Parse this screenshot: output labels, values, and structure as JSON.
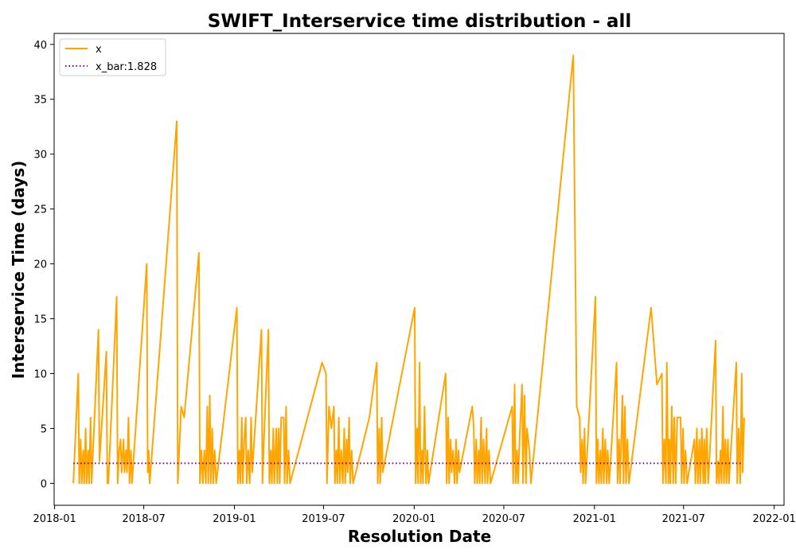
{
  "chart_data": {
    "type": "line",
    "title": "SWIFT_Interservice time distribution - all",
    "xlabel": "Resolution Date",
    "ylabel": "Interservice Time (days)",
    "xlim": [
      "2017-12-31",
      "2022-01-21"
    ],
    "ylim": [
      -2,
      41
    ],
    "x_ticks": [
      "2018-01",
      "2018-07",
      "2019-01",
      "2019-07",
      "2020-01",
      "2020-07",
      "2021-01",
      "2021-07",
      "2022-01"
    ],
    "y_ticks": [
      0,
      5,
      10,
      15,
      20,
      25,
      30,
      35,
      40
    ],
    "grid": false,
    "legend": {
      "placement": "top-left",
      "entries": [
        "x",
        "x_bar:1.828"
      ]
    },
    "colors": {
      "x": "#FFA500",
      "x_bar": "#800080",
      "frame": "#000000"
    },
    "series": [
      {
        "name": "x",
        "style": "solid",
        "points": [
          [
            "2018-02-08",
            0
          ],
          [
            "2018-02-11",
            3
          ],
          [
            "2018-02-18",
            10
          ],
          [
            "2018-02-20",
            0
          ],
          [
            "2018-02-23",
            4
          ],
          [
            "2018-02-25",
            0
          ],
          [
            "2018-02-28",
            3
          ],
          [
            "2018-03-02",
            0
          ],
          [
            "2018-03-05",
            5
          ],
          [
            "2018-03-07",
            0
          ],
          [
            "2018-03-10",
            3
          ],
          [
            "2018-03-12",
            0
          ],
          [
            "2018-03-15",
            6
          ],
          [
            "2018-03-17",
            0
          ],
          [
            "2018-03-31",
            14
          ],
          [
            "2018-04-02",
            2
          ],
          [
            "2018-04-16",
            12
          ],
          [
            "2018-04-18",
            0
          ],
          [
            "2018-04-20",
            0
          ],
          [
            "2018-05-07",
            17
          ],
          [
            "2018-05-09",
            0
          ],
          [
            "2018-05-12",
            3
          ],
          [
            "2018-05-15",
            4
          ],
          [
            "2018-05-17",
            1
          ],
          [
            "2018-05-21",
            4
          ],
          [
            "2018-05-23",
            1
          ],
          [
            "2018-05-26",
            3
          ],
          [
            "2018-05-28",
            1
          ],
          [
            "2018-05-31",
            6
          ],
          [
            "2018-06-02",
            0
          ],
          [
            "2018-06-05",
            3
          ],
          [
            "2018-06-07",
            0
          ],
          [
            "2018-07-07",
            20
          ],
          [
            "2018-07-09",
            1
          ],
          [
            "2018-07-11",
            3
          ],
          [
            "2018-07-13",
            0
          ],
          [
            "2018-09-06",
            33
          ],
          [
            "2018-09-08",
            0
          ],
          [
            "2018-09-15",
            7
          ],
          [
            "2018-09-21",
            6
          ],
          [
            "2018-10-21",
            21
          ],
          [
            "2018-10-23",
            0
          ],
          [
            "2018-10-26",
            3
          ],
          [
            "2018-10-29",
            0
          ],
          [
            "2018-11-01",
            3
          ],
          [
            "2018-11-04",
            0
          ],
          [
            "2018-11-07",
            7
          ],
          [
            "2018-11-09",
            0
          ],
          [
            "2018-11-12",
            8
          ],
          [
            "2018-11-14",
            0
          ],
          [
            "2018-11-17",
            5
          ],
          [
            "2018-11-19",
            0
          ],
          [
            "2018-11-22",
            3
          ],
          [
            "2018-11-25",
            0
          ],
          [
            "2019-01-06",
            16
          ],
          [
            "2019-01-08",
            0
          ],
          [
            "2019-01-11",
            3
          ],
          [
            "2019-01-13",
            0
          ],
          [
            "2019-01-16",
            6
          ],
          [
            "2019-01-18",
            0
          ],
          [
            "2019-01-21",
            4
          ],
          [
            "2019-01-24",
            6
          ],
          [
            "2019-01-26",
            0
          ],
          [
            "2019-01-29",
            3
          ],
          [
            "2019-02-01",
            0
          ],
          [
            "2019-02-04",
            6
          ],
          [
            "2019-02-06",
            1
          ],
          [
            "2019-02-25",
            14
          ],
          [
            "2019-02-27",
            0
          ],
          [
            "2019-03-02",
            4
          ],
          [
            "2019-03-11",
            14
          ],
          [
            "2019-03-13",
            0
          ],
          [
            "2019-03-16",
            3
          ],
          [
            "2019-03-18",
            0
          ],
          [
            "2019-03-21",
            5
          ],
          [
            "2019-03-23",
            0
          ],
          [
            "2019-03-27",
            5
          ],
          [
            "2019-03-29",
            0
          ],
          [
            "2019-04-01",
            5
          ],
          [
            "2019-04-03",
            0
          ],
          [
            "2019-04-06",
            6
          ],
          [
            "2019-04-11",
            6
          ],
          [
            "2019-04-13",
            0
          ],
          [
            "2019-04-16",
            7
          ],
          [
            "2019-04-18",
            0
          ],
          [
            "2019-04-21",
            3
          ],
          [
            "2019-04-24",
            0
          ],
          [
            "2019-06-28",
            11
          ],
          [
            "2019-07-06",
            10
          ],
          [
            "2019-07-08",
            0
          ],
          [
            "2019-07-12",
            7
          ],
          [
            "2019-07-17",
            5
          ],
          [
            "2019-07-22",
            7
          ],
          [
            "2019-07-24",
            0
          ],
          [
            "2019-07-27",
            3
          ],
          [
            "2019-07-29",
            0
          ],
          [
            "2019-08-01",
            6
          ],
          [
            "2019-08-03",
            0
          ],
          [
            "2019-08-06",
            3
          ],
          [
            "2019-08-09",
            0
          ],
          [
            "2019-08-12",
            5
          ],
          [
            "2019-08-14",
            0
          ],
          [
            "2019-08-17",
            4
          ],
          [
            "2019-08-19",
            1
          ],
          [
            "2019-08-22",
            6
          ],
          [
            "2019-08-24",
            0
          ],
          [
            "2019-08-27",
            3
          ],
          [
            "2019-08-30",
            0
          ],
          [
            "2019-10-02",
            6
          ],
          [
            "2019-10-17",
            11
          ],
          [
            "2019-10-19",
            0
          ],
          [
            "2019-10-22",
            5
          ],
          [
            "2019-10-24",
            0
          ],
          [
            "2019-10-27",
            6
          ],
          [
            "2019-10-29",
            1
          ],
          [
            "2020-01-02",
            16
          ],
          [
            "2020-01-04",
            0
          ],
          [
            "2020-01-07",
            5
          ],
          [
            "2020-01-09",
            0
          ],
          [
            "2020-01-12",
            11
          ],
          [
            "2020-01-14",
            0
          ],
          [
            "2020-01-17",
            3
          ],
          [
            "2020-01-19",
            0
          ],
          [
            "2020-01-22",
            7
          ],
          [
            "2020-01-25",
            0
          ],
          [
            "2020-01-28",
            3
          ],
          [
            "2020-01-30",
            0
          ],
          [
            "2020-03-05",
            10
          ],
          [
            "2020-03-07",
            0
          ],
          [
            "2020-03-10",
            6
          ],
          [
            "2020-03-12",
            0
          ],
          [
            "2020-03-15",
            4
          ],
          [
            "2020-03-17",
            1
          ],
          [
            "2020-03-20",
            3
          ],
          [
            "2020-03-23",
            0
          ],
          [
            "2020-03-26",
            4
          ],
          [
            "2020-03-28",
            0
          ],
          [
            "2020-03-31",
            3
          ],
          [
            "2020-04-02",
            1
          ],
          [
            "2020-04-28",
            7
          ],
          [
            "2020-05-01",
            5
          ],
          [
            "2020-05-03",
            0
          ],
          [
            "2020-05-06",
            4
          ],
          [
            "2020-05-08",
            0
          ],
          [
            "2020-05-11",
            3
          ],
          [
            "2020-05-13",
            0
          ],
          [
            "2020-05-16",
            6
          ],
          [
            "2020-05-18",
            0
          ],
          [
            "2020-05-21",
            4
          ],
          [
            "2020-05-24",
            0
          ],
          [
            "2020-05-27",
            5
          ],
          [
            "2020-05-29",
            0
          ],
          [
            "2020-06-01",
            3
          ],
          [
            "2020-06-04",
            0
          ],
          [
            "2020-07-18",
            7
          ],
          [
            "2020-07-20",
            0
          ],
          [
            "2020-07-23",
            9
          ],
          [
            "2020-07-25",
            0
          ],
          [
            "2020-07-28",
            3
          ],
          [
            "2020-07-30",
            0
          ],
          [
            "2020-08-02",
            4
          ],
          [
            "2020-08-07",
            9
          ],
          [
            "2020-08-09",
            0
          ],
          [
            "2020-08-12",
            8
          ],
          [
            "2020-08-15",
            0
          ],
          [
            "2020-08-17",
            5
          ],
          [
            "2020-08-22",
            3
          ],
          [
            "2020-08-25",
            0
          ],
          [
            "2020-11-19",
            39
          ],
          [
            "2020-11-26",
            7
          ],
          [
            "2020-12-02",
            6
          ],
          [
            "2020-12-04",
            1
          ],
          [
            "2020-12-07",
            4
          ],
          [
            "2020-12-09",
            0
          ],
          [
            "2020-12-12",
            5
          ],
          [
            "2020-12-14",
            0
          ],
          [
            "2021-01-03",
            17
          ],
          [
            "2021-01-05",
            0
          ],
          [
            "2021-01-08",
            4
          ],
          [
            "2021-01-10",
            0
          ],
          [
            "2021-01-13",
            3
          ],
          [
            "2021-01-15",
            0
          ],
          [
            "2021-01-18",
            5
          ],
          [
            "2021-01-20",
            0
          ],
          [
            "2021-01-23",
            4
          ],
          [
            "2021-01-26",
            0
          ],
          [
            "2021-01-28",
            3
          ],
          [
            "2021-01-31",
            0
          ],
          [
            "2021-02-15",
            11
          ],
          [
            "2021-02-17",
            0
          ],
          [
            "2021-02-20",
            4
          ],
          [
            "2021-02-22",
            0
          ],
          [
            "2021-02-27",
            8
          ],
          [
            "2021-03-01",
            0
          ],
          [
            "2021-03-04",
            7
          ],
          [
            "2021-03-06",
            0
          ],
          [
            "2021-03-09",
            4
          ],
          [
            "2021-03-12",
            0
          ],
          [
            "2021-04-26",
            16
          ],
          [
            "2021-05-08",
            9
          ],
          [
            "2021-05-18",
            10
          ],
          [
            "2021-05-20",
            0
          ],
          [
            "2021-05-23",
            4
          ],
          [
            "2021-05-26",
            0
          ],
          [
            "2021-05-28",
            11
          ],
          [
            "2021-05-31",
            0
          ],
          [
            "2021-06-02",
            4
          ],
          [
            "2021-06-04",
            0
          ],
          [
            "2021-06-07",
            7
          ],
          [
            "2021-06-10",
            0
          ],
          [
            "2021-06-12",
            6
          ],
          [
            "2021-06-15",
            0
          ],
          [
            "2021-06-18",
            6
          ],
          [
            "2021-06-25",
            6
          ],
          [
            "2021-06-27",
            0
          ],
          [
            "2021-06-30",
            5
          ],
          [
            "2021-07-02",
            0
          ],
          [
            "2021-07-05",
            3
          ],
          [
            "2021-07-08",
            0
          ],
          [
            "2021-07-23",
            4
          ],
          [
            "2021-07-25",
            0
          ],
          [
            "2021-07-28",
            5
          ],
          [
            "2021-07-30",
            0
          ],
          [
            "2021-08-02",
            4
          ],
          [
            "2021-08-04",
            0
          ],
          [
            "2021-08-07",
            5
          ],
          [
            "2021-08-10",
            0
          ],
          [
            "2021-08-12",
            4
          ],
          [
            "2021-08-14",
            0
          ],
          [
            "2021-08-17",
            5
          ],
          [
            "2021-08-20",
            0
          ],
          [
            "2021-09-04",
            13
          ],
          [
            "2021-09-06",
            0
          ],
          [
            "2021-09-09",
            2
          ],
          [
            "2021-09-11",
            0
          ],
          [
            "2021-09-14",
            3
          ],
          [
            "2021-09-16",
            0
          ],
          [
            "2021-09-19",
            7
          ],
          [
            "2021-09-21",
            0
          ],
          [
            "2021-09-24",
            4
          ],
          [
            "2021-09-26",
            0
          ],
          [
            "2021-09-29",
            4
          ],
          [
            "2021-10-01",
            0
          ],
          [
            "2021-10-16",
            11
          ],
          [
            "2021-10-18",
            0
          ],
          [
            "2021-10-21",
            5
          ],
          [
            "2021-10-24",
            0
          ],
          [
            "2021-10-27",
            10
          ],
          [
            "2021-10-29",
            1
          ],
          [
            "2021-11-01",
            6
          ]
        ]
      },
      {
        "name": "x_bar:1.828",
        "style": "dotted",
        "points": [
          [
            "2018-02-08",
            1.828
          ],
          [
            "2021-10-27",
            1.828
          ]
        ]
      }
    ]
  }
}
